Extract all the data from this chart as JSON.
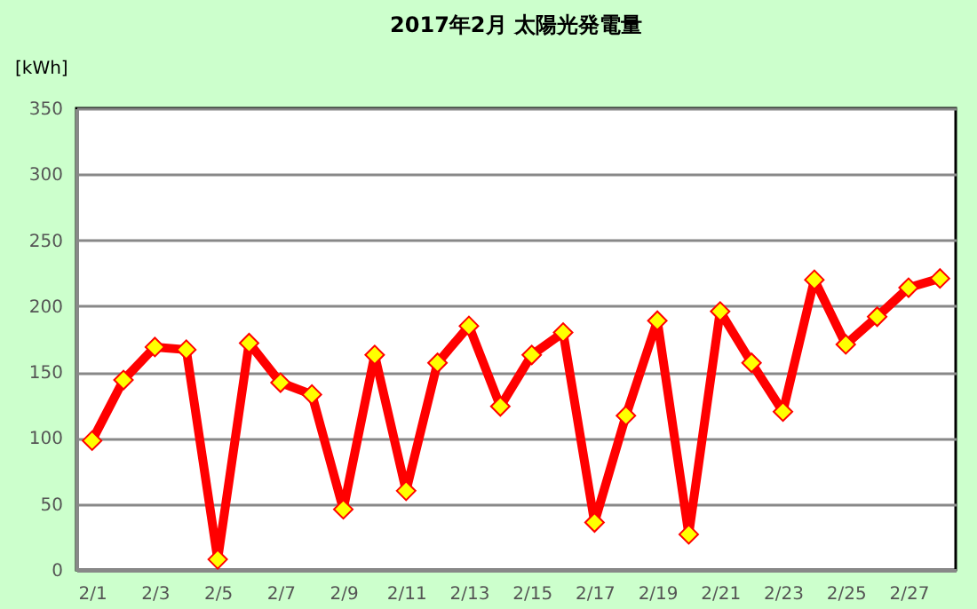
{
  "chart_data": {
    "type": "line",
    "title": "2017年2月  太陽光発電量",
    "ylabel": "[kWh]",
    "categories": [
      "2/1",
      null,
      "2/3",
      null,
      "2/5",
      null,
      "2/7",
      null,
      "2/9",
      null,
      "2/11",
      null,
      "2/13",
      null,
      "2/15",
      null,
      "2/17",
      null,
      "2/19",
      null,
      "2/21",
      null,
      "2/23",
      null,
      "2/25",
      null,
      "2/27",
      null
    ],
    "series": [
      {
        "color": "#ff0000",
        "values": [
          98,
          144,
          169,
          167,
          8,
          172,
          142,
          133,
          46,
          163,
          60,
          157,
          185,
          124,
          163,
          180,
          36,
          117,
          189,
          27,
          196,
          157,
          120,
          220,
          171,
          192,
          214,
          221
        ]
      }
    ],
    "ylim": [
      0,
      350
    ],
    "yticks": [
      0,
      50,
      100,
      150,
      200,
      250,
      300,
      350
    ],
    "grid": "y",
    "marker": "diamond",
    "line_style": "solid"
  }
}
